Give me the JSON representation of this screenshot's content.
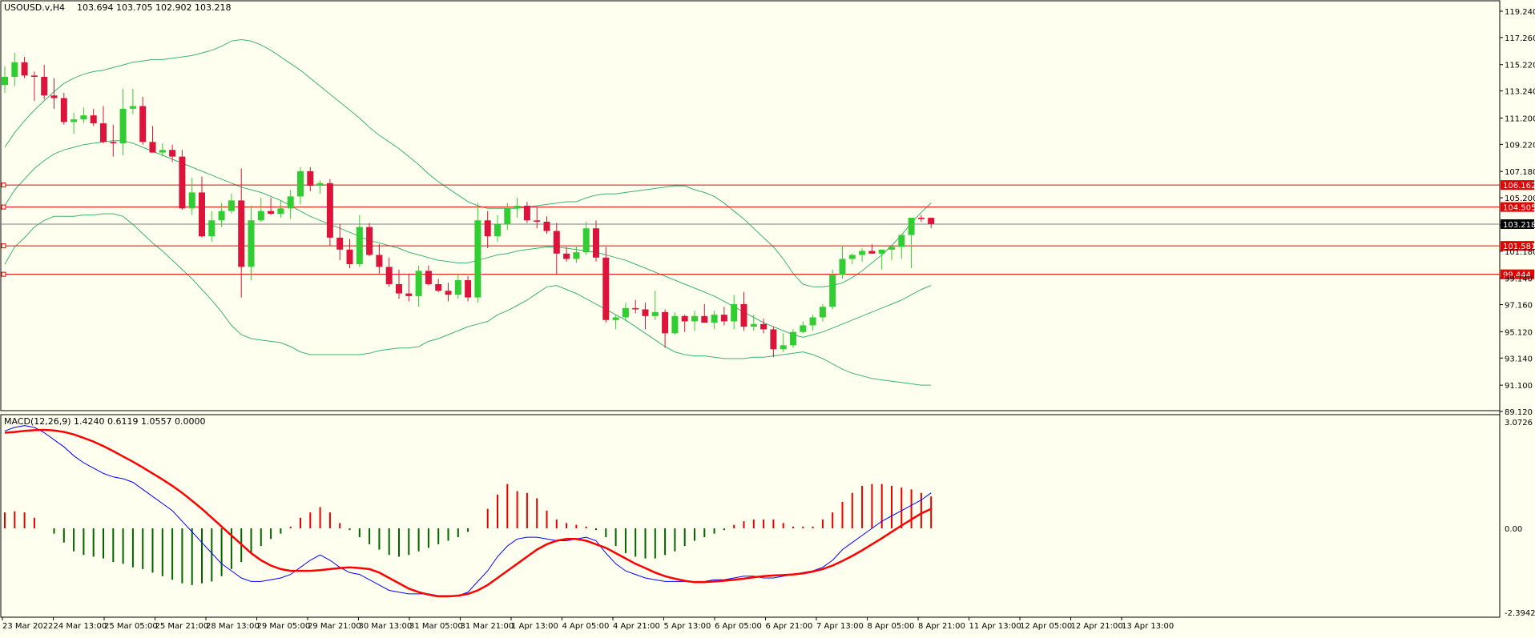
{
  "price_header": {
    "symbol": "USOUSD.v,H4",
    "ohlc": "103.694 103.705 102.902 103.218"
  },
  "macd_header": {
    "label": "MACD(12,26,9) 1.4240 0.6119 1.0557 0.0000"
  },
  "colors": {
    "background": "#fffff0",
    "bull_candle": "#32cd32",
    "bear_candle": "#dc143c",
    "bollinger": "#3cb371",
    "level_line": "#e60000",
    "current_price_line": "#808080",
    "macd_line": "#0000ff",
    "signal_line": "#ff0000",
    "hist_positive": "#e60000",
    "hist_negative": "#006400"
  },
  "price_axis": {
    "ticks": [
      "119.240",
      "117.260",
      "115.220",
      "113.240",
      "111.200",
      "109.220",
      "107.180",
      "105.200",
      "103.160",
      "101.180",
      "99.140",
      "97.160",
      "95.120",
      "93.140",
      "91.100",
      "89.120"
    ],
    "min": 89.12,
    "max": 119.24,
    "current_price_label": "103.218",
    "current_price": 103.218
  },
  "macd_axis": {
    "ticks": [
      "3.0726",
      "0.00",
      "-2.3942"
    ],
    "min": -2.3942,
    "max": 3.0726
  },
  "time_axis": {
    "labels": [
      "23 Mar 2022",
      "24 Mar 13:00",
      "25 Mar 05:00",
      "25 Mar 21:00",
      "28 Mar 13:00",
      "29 Mar 05:00",
      "29 Mar 21:00",
      "30 Mar 13:00",
      "31 Mar 05:00",
      "31 Mar 21:00",
      "1 Apr 13:00",
      "4 Apr 05:00",
      "4 Apr 21:00",
      "5 Apr 13:00",
      "6 Apr 05:00",
      "6 Apr 21:00",
      "7 Apr 13:00",
      "8 Apr 05:00",
      "8 Apr 21:00",
      "11 Apr 13:00",
      "12 Apr 05:00",
      "12 Apr 21:00",
      "13 Apr 13:00"
    ]
  },
  "horizontal_levels": [
    {
      "label": "106.162",
      "value": 106.162
    },
    {
      "label": "104.505",
      "value": 104.505
    },
    {
      "label": "101.581",
      "value": 101.581
    },
    {
      "label": "99.444",
      "value": 99.444
    }
  ],
  "chart_data": {
    "type": "candlestick",
    "candles_ohlc": [
      [
        113.69,
        115.1,
        113.1,
        114.3
      ],
      [
        114.3,
        116.1,
        113.6,
        115.4
      ],
      [
        115.4,
        115.8,
        114.2,
        114.4
      ],
      [
        114.4,
        114.7,
        112.5,
        114.3
      ],
      [
        114.3,
        115.2,
        112.6,
        112.9
      ],
      [
        112.9,
        114.2,
        111.9,
        112.7
      ],
      [
        112.7,
        113.1,
        110.7,
        110.9
      ],
      [
        110.9,
        111.6,
        110.0,
        111.1
      ],
      [
        111.1,
        112.0,
        110.8,
        111.4
      ],
      [
        111.4,
        111.9,
        110.6,
        110.8
      ],
      [
        110.8,
        112.1,
        109.3,
        109.4
      ],
      [
        109.4,
        110.7,
        108.3,
        109.3
      ],
      [
        109.3,
        113.4,
        108.4,
        111.9
      ],
      [
        111.9,
        113.4,
        111.5,
        112.1
      ],
      [
        112.1,
        112.8,
        109.2,
        109.4
      ],
      [
        109.4,
        110.6,
        108.6,
        108.6
      ],
      [
        108.6,
        109.3,
        108.3,
        108.8
      ],
      [
        108.8,
        109.2,
        107.9,
        108.3
      ],
      [
        108.3,
        108.8,
        104.3,
        104.4
      ],
      [
        104.4,
        106.7,
        103.9,
        105.6
      ],
      [
        105.6,
        106.8,
        102.2,
        102.3
      ],
      [
        102.3,
        104.2,
        101.9,
        103.5
      ],
      [
        103.5,
        104.8,
        103.0,
        104.2
      ],
      [
        104.2,
        105.5,
        104.0,
        105.0
      ],
      [
        105.0,
        107.4,
        97.7,
        100.0
      ],
      [
        100.0,
        104.6,
        99.0,
        103.5
      ],
      [
        103.5,
        105.2,
        103.4,
        104.2
      ],
      [
        104.2,
        105.2,
        103.9,
        104.0
      ],
      [
        104.0,
        105.0,
        103.7,
        104.4
      ],
      [
        104.4,
        105.8,
        103.6,
        105.3
      ],
      [
        105.3,
        107.5,
        104.7,
        107.2
      ],
      [
        107.2,
        107.5,
        105.7,
        106.1
      ],
      [
        106.1,
        106.5,
        105.5,
        106.3
      ],
      [
        106.3,
        106.6,
        101.6,
        102.2
      ],
      [
        102.2,
        103.2,
        100.5,
        101.3
      ],
      [
        101.3,
        102.1,
        99.9,
        100.2
      ],
      [
        100.2,
        103.9,
        100.0,
        103.0
      ],
      [
        103.0,
        103.3,
        100.8,
        100.9
      ],
      [
        100.9,
        101.7,
        99.5,
        100.0
      ],
      [
        100.0,
        100.7,
        98.5,
        98.7
      ],
      [
        98.7,
        99.8,
        97.6,
        98.0
      ],
      [
        98.0,
        99.5,
        97.4,
        97.8
      ],
      [
        97.8,
        100.1,
        97.0,
        99.7
      ],
      [
        99.7,
        100.1,
        98.6,
        98.7
      ],
      [
        98.7,
        99.1,
        98.1,
        98.2
      ],
      [
        98.2,
        98.8,
        97.4,
        97.9
      ],
      [
        97.9,
        99.5,
        97.6,
        99.0
      ],
      [
        99.0,
        99.3,
        97.4,
        97.7
      ],
      [
        97.7,
        104.8,
        97.3,
        103.5
      ],
      [
        103.5,
        104.2,
        101.4,
        102.3
      ],
      [
        102.3,
        103.9,
        101.9,
        103.2
      ],
      [
        103.2,
        104.8,
        102.8,
        104.4
      ],
      [
        104.4,
        105.2,
        103.7,
        104.6
      ],
      [
        104.6,
        104.9,
        103.3,
        103.5
      ],
      [
        103.5,
        104.5,
        102.9,
        103.4
      ],
      [
        103.4,
        103.8,
        102.5,
        102.7
      ],
      [
        102.7,
        103.3,
        99.4,
        101.0
      ],
      [
        101.0,
        101.5,
        100.4,
        100.6
      ],
      [
        100.6,
        101.6,
        100.3,
        101.1
      ],
      [
        101.1,
        103.4,
        100.9,
        102.9
      ],
      [
        102.9,
        103.5,
        100.4,
        100.7
      ],
      [
        100.7,
        101.5,
        95.8,
        96.0
      ],
      [
        96.0,
        96.4,
        95.3,
        96.2
      ],
      [
        96.2,
        97.3,
        95.9,
        96.9
      ],
      [
        96.9,
        97.5,
        96.5,
        96.8
      ],
      [
        96.8,
        97.3,
        95.3,
        96.3
      ],
      [
        96.3,
        98.2,
        96.0,
        96.6
      ],
      [
        96.6,
        96.8,
        93.9,
        95.0
      ],
      [
        95.0,
        96.6,
        94.9,
        96.3
      ],
      [
        96.3,
        96.4,
        95.1,
        95.9
      ],
      [
        95.9,
        96.7,
        95.2,
        96.3
      ],
      [
        96.3,
        97.2,
        95.9,
        95.8
      ],
      [
        95.8,
        96.7,
        95.3,
        96.4
      ],
      [
        96.4,
        97.0,
        95.6,
        95.9
      ],
      [
        95.9,
        97.9,
        95.3,
        97.2
      ],
      [
        97.2,
        98.1,
        95.2,
        95.5
      ],
      [
        95.5,
        96.4,
        95.2,
        95.7
      ],
      [
        95.7,
        96.1,
        95.0,
        95.3
      ],
      [
        95.3,
        95.5,
        93.2,
        93.8
      ],
      [
        93.8,
        95.0,
        93.6,
        94.1
      ],
      [
        94.1,
        95.3,
        93.9,
        95.1
      ],
      [
        95.1,
        95.9,
        95.0,
        95.6
      ],
      [
        95.6,
        96.4,
        95.2,
        96.2
      ],
      [
        96.2,
        97.2,
        95.9,
        97.0
      ],
      [
        97.0,
        99.8,
        96.8,
        99.4
      ],
      [
        99.4,
        101.6,
        99.1,
        100.6
      ],
      [
        100.6,
        101.0,
        100.2,
        100.9
      ],
      [
        100.9,
        101.4,
        100.4,
        101.2
      ],
      [
        101.2,
        101.7,
        101.0,
        101.0
      ],
      [
        101.0,
        101.2,
        99.8,
        101.3
      ],
      [
        101.3,
        101.6,
        100.5,
        101.5
      ],
      [
        101.5,
        102.3,
        100.6,
        102.4
      ],
      [
        102.4,
        103.7,
        99.9,
        103.7
      ],
      [
        103.7,
        103.9,
        103.4,
        103.6
      ],
      [
        103.694,
        103.705,
        102.902,
        103.218
      ]
    ],
    "bollinger_upper": [
      109.0,
      110.1,
      111.0,
      111.8,
      112.5,
      113.2,
      113.8,
      114.2,
      114.5,
      114.7,
      114.8,
      115.0,
      115.2,
      115.4,
      115.5,
      115.6,
      115.6,
      115.7,
      115.8,
      115.9,
      116.1,
      116.3,
      116.6,
      117.0,
      117.1,
      117.0,
      116.7,
      116.3,
      115.8,
      115.3,
      114.8,
      114.2,
      113.6,
      113.0,
      112.4,
      111.8,
      111.2,
      110.5,
      109.9,
      109.4,
      108.9,
      108.3,
      107.7,
      107.0,
      106.4,
      105.9,
      105.4,
      104.9,
      104.6,
      104.4,
      104.4,
      104.4,
      104.4,
      104.5,
      104.6,
      104.7,
      104.8,
      104.9,
      104.9,
      105.2,
      105.4,
      105.5,
      105.5,
      105.6,
      105.7,
      105.8,
      105.9,
      106.0,
      106.1,
      106.1,
      105.8,
      105.6,
      105.3,
      104.8,
      104.2,
      103.6,
      102.9,
      102.2,
      101.5,
      100.6,
      99.5,
      98.7,
      98.5,
      98.5,
      98.6,
      98.8,
      99.2,
      99.7,
      100.3,
      100.9,
      101.6,
      102.4,
      103.3,
      104.1,
      104.8
    ],
    "bollinger_middle": [
      104.6,
      105.8,
      106.6,
      107.4,
      108.0,
      108.5,
      108.8,
      109.0,
      109.2,
      109.3,
      109.4,
      109.5,
      109.5,
      109.3,
      109.0,
      108.7,
      108.4,
      108.1,
      107.8,
      107.5,
      107.2,
      106.9,
      106.6,
      106.3,
      106.0,
      105.8,
      105.6,
      105.3,
      105.0,
      104.6,
      104.2,
      103.8,
      103.5,
      103.2,
      102.9,
      102.6,
      102.3,
      102.0,
      101.8,
      101.6,
      101.4,
      101.1,
      100.9,
      100.7,
      100.5,
      100.4,
      100.3,
      100.3,
      100.5,
      100.7,
      100.9,
      101.0,
      101.2,
      101.3,
      101.4,
      101.5,
      101.5,
      101.4,
      101.3,
      101.2,
      101.1,
      100.9,
      100.7,
      100.5,
      100.2,
      99.9,
      99.6,
      99.3,
      99.0,
      98.7,
      98.4,
      98.1,
      97.8,
      97.4,
      97.0,
      96.6,
      96.2,
      95.8,
      95.5,
      95.2,
      94.9,
      94.7,
      94.9,
      95.1,
      95.4,
      95.7,
      96.0,
      96.3,
      96.6,
      96.9,
      97.2,
      97.5,
      97.9,
      98.3,
      98.6
    ],
    "bollinger_lower": [
      100.2,
      101.5,
      102.2,
      103.0,
      103.5,
      103.8,
      103.8,
      103.8,
      103.9,
      103.9,
      104.0,
      104.0,
      103.8,
      103.2,
      102.5,
      101.8,
      101.2,
      100.5,
      99.8,
      99.1,
      98.3,
      97.5,
      96.6,
      95.6,
      94.9,
      94.6,
      94.5,
      94.4,
      94.3,
      94.0,
      93.6,
      93.4,
      93.4,
      93.4,
      93.4,
      93.4,
      93.4,
      93.5,
      93.7,
      93.8,
      93.9,
      93.9,
      94.0,
      94.4,
      94.6,
      94.9,
      95.2,
      95.5,
      95.7,
      95.9,
      96.4,
      96.7,
      97.1,
      97.5,
      98.0,
      98.5,
      98.6,
      98.3,
      98.0,
      97.6,
      97.2,
      96.8,
      96.4,
      96.0,
      95.5,
      95.0,
      94.5,
      94.0,
      93.6,
      93.4,
      93.3,
      93.3,
      93.2,
      93.1,
      93.1,
      93.1,
      93.2,
      93.2,
      93.3,
      93.4,
      93.5,
      93.6,
      93.4,
      93.1,
      92.7,
      92.3,
      92.0,
      91.8,
      91.6,
      91.5,
      91.4,
      91.3,
      91.2,
      91.1,
      91.1
    ],
    "macd_main": [
      2.75,
      2.85,
      2.9,
      2.85,
      2.7,
      2.5,
      2.3,
      2.05,
      1.85,
      1.7,
      1.55,
      1.45,
      1.4,
      1.3,
      1.1,
      0.9,
      0.7,
      0.5,
      0.2,
      -0.1,
      -0.4,
      -0.7,
      -1.0,
      -1.2,
      -1.4,
      -1.5,
      -1.5,
      -1.45,
      -1.4,
      -1.3,
      -1.1,
      -0.9,
      -0.75,
      -0.9,
      -1.1,
      -1.25,
      -1.3,
      -1.45,
      -1.6,
      -1.75,
      -1.8,
      -1.85,
      -1.85,
      -1.85,
      -1.9,
      -1.9,
      -1.9,
      -1.8,
      -1.5,
      -1.2,
      -0.8,
      -0.5,
      -0.3,
      -0.25,
      -0.25,
      -0.3,
      -0.35,
      -0.35,
      -0.3,
      -0.25,
      -0.35,
      -0.7,
      -1.0,
      -1.2,
      -1.3,
      -1.4,
      -1.45,
      -1.5,
      -1.5,
      -1.5,
      -1.5,
      -1.5,
      -1.45,
      -1.45,
      -1.4,
      -1.35,
      -1.35,
      -1.4,
      -1.4,
      -1.35,
      -1.3,
      -1.25,
      -1.2,
      -1.1,
      -0.9,
      -0.6,
      -0.4,
      -0.2,
      0.0,
      0.2,
      0.35,
      0.5,
      0.65,
      0.8,
      1.0
    ],
    "macd_signal": [
      2.7,
      2.72,
      2.75,
      2.77,
      2.78,
      2.76,
      2.72,
      2.65,
      2.55,
      2.45,
      2.32,
      2.18,
      2.03,
      1.88,
      1.72,
      1.55,
      1.38,
      1.2,
      1.0,
      0.78,
      0.55,
      0.3,
      0.05,
      -0.2,
      -0.45,
      -0.7,
      -0.9,
      -1.05,
      -1.15,
      -1.2,
      -1.2,
      -1.2,
      -1.18,
      -1.15,
      -1.12,
      -1.1,
      -1.12,
      -1.15,
      -1.25,
      -1.4,
      -1.55,
      -1.7,
      -1.8,
      -1.87,
      -1.92,
      -1.92,
      -1.9,
      -1.85,
      -1.75,
      -1.6,
      -1.4,
      -1.2,
      -1.0,
      -0.8,
      -0.6,
      -0.45,
      -0.35,
      -0.3,
      -0.3,
      -0.35,
      -0.45,
      -0.55,
      -0.7,
      -0.85,
      -1.0,
      -1.12,
      -1.25,
      -1.35,
      -1.42,
      -1.48,
      -1.52,
      -1.52,
      -1.5,
      -1.48,
      -1.45,
      -1.42,
      -1.38,
      -1.35,
      -1.33,
      -1.32,
      -1.3,
      -1.27,
      -1.22,
      -1.15,
      -1.05,
      -0.92,
      -0.78,
      -0.62,
      -0.45,
      -0.28,
      -0.1,
      0.08,
      0.25,
      0.42,
      0.55
    ],
    "macd_histogram": [
      0.45,
      0.48,
      0.45,
      0.3,
      0.0,
      -0.15,
      -0.4,
      -0.65,
      -0.75,
      -0.8,
      -0.85,
      -0.95,
      -1.0,
      -1.1,
      -1.15,
      -1.25,
      -1.35,
      -1.45,
      -1.55,
      -1.6,
      -1.55,
      -1.5,
      -1.35,
      -1.15,
      -0.95,
      -0.7,
      -0.5,
      -0.3,
      -0.15,
      0.05,
      0.3,
      0.45,
      0.6,
      0.45,
      0.15,
      -0.05,
      -0.25,
      -0.45,
      -0.6,
      -0.75,
      -0.8,
      -0.75,
      -0.65,
      -0.55,
      -0.45,
      -0.35,
      -0.25,
      -0.1,
      0.0,
      0.55,
      0.95,
      1.25,
      1.05,
      1.0,
      0.85,
      0.5,
      0.25,
      0.15,
      0.1,
      0.05,
      -0.05,
      -0.25,
      -0.5,
      -0.7,
      -0.8,
      -0.85,
      -0.85,
      -0.75,
      -0.65,
      -0.5,
      -0.35,
      -0.25,
      -0.15,
      -0.05,
      0.1,
      0.2,
      0.25,
      0.25,
      0.25,
      0.15,
      0.05,
      0.05,
      0.05,
      0.25,
      0.45,
      0.75,
      1.0,
      1.2,
      1.25,
      1.25,
      1.2,
      1.15,
      1.1,
      1.0,
      0.9
    ]
  }
}
